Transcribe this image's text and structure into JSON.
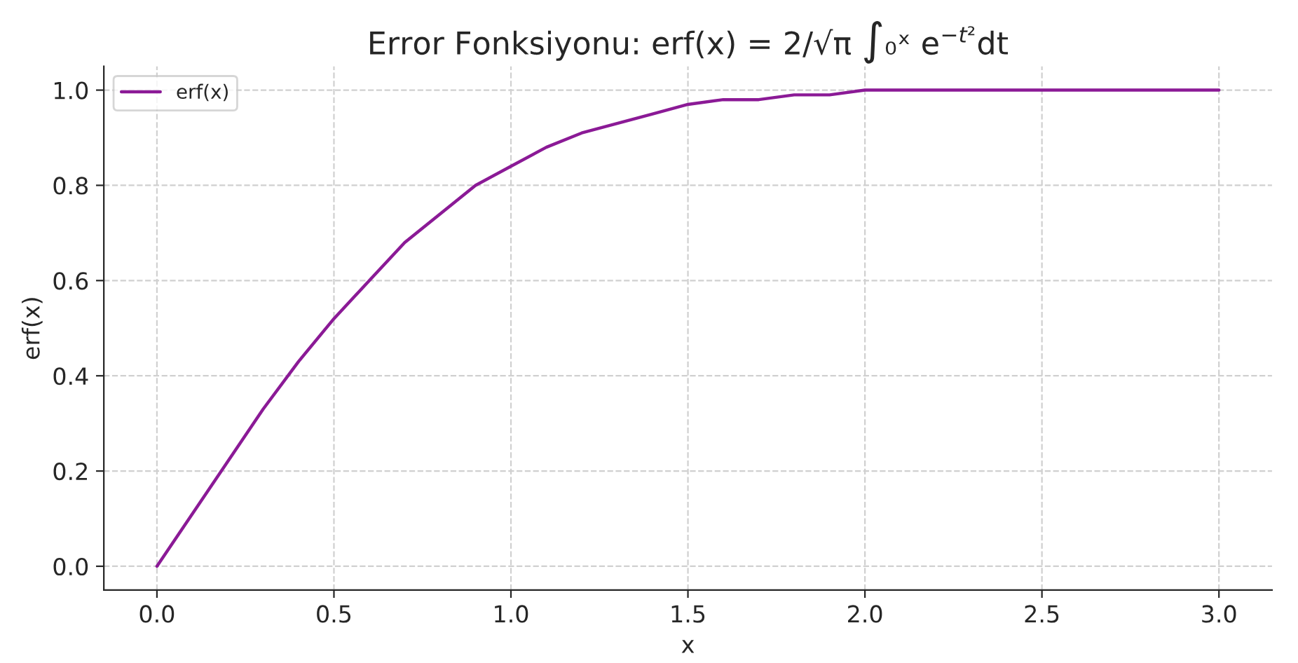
{
  "chart_data": {
    "type": "line",
    "title": "Error Fonksiyonu: erf(x) = 2/√π ∫₀ˣ e$^{−t²}$dt",
    "xlabel": "x",
    "ylabel": "erf(x)",
    "x": [
      0,
      0.1,
      0.2,
      0.3,
      0.4,
      0.5,
      0.6,
      0.7,
      0.8,
      0.9,
      1.0,
      1.1,
      1.2,
      1.3,
      1.4,
      1.5,
      1.6,
      1.7,
      1.8,
      1.9,
      2.0,
      2.2,
      2.4,
      2.6,
      2.8,
      3.0
    ],
    "series": [
      {
        "name": "erf(x)",
        "color": "#8b1a96",
        "values": [
          0,
          0.11,
          0.22,
          0.33,
          0.43,
          0.52,
          0.6,
          0.68,
          0.74,
          0.8,
          0.84,
          0.88,
          0.91,
          0.93,
          0.95,
          0.97,
          0.98,
          0.98,
          0.99,
          0.99,
          1.0,
          1.0,
          1.0,
          1.0,
          1.0,
          1.0
        ]
      }
    ],
    "xlim": [
      -0.15,
      3.15
    ],
    "ylim": [
      -0.05,
      1.05
    ],
    "xticks": [
      {
        "value": 0,
        "label": "0.0"
      },
      0.5,
      {
        "value": 1,
        "label": "1.0"
      },
      1.5,
      {
        "value": 2,
        "label": "2.0"
      },
      2.5,
      {
        "value": 3,
        "label": "3.0"
      }
    ],
    "yticks": [
      {
        "value": 0,
        "label": "0.0"
      },
      0.2,
      0.4,
      0.6,
      0.8,
      {
        "value": 1,
        "label": "1.0"
      }
    ],
    "grid": true,
    "legend": "top left",
    "marker": "none",
    "line_style": "solid"
  }
}
